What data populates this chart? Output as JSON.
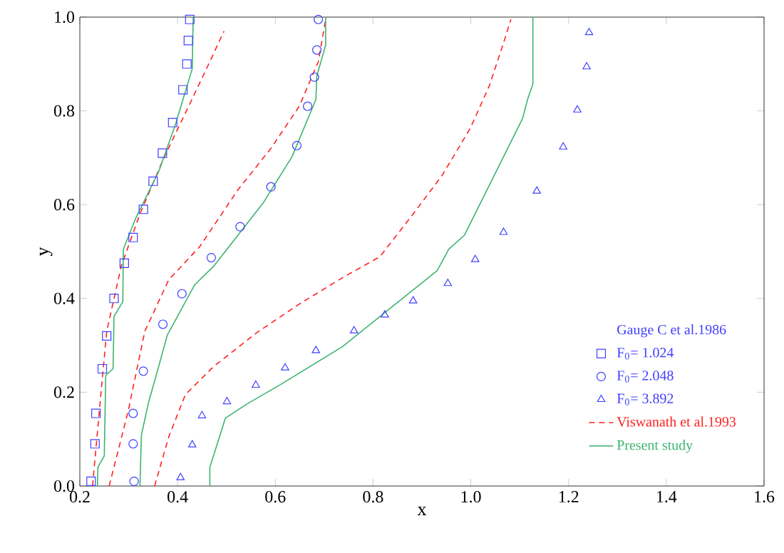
{
  "chart_data": {
    "type": "line",
    "xlabel": "x",
    "ylabel": "y",
    "legend_title": "Gauge C et al.1986",
    "legend": "bottom right",
    "grid": false,
    "xlim": [
      0.2,
      1.6
    ],
    "ylim": [
      0,
      1
    ],
    "xticks": [
      0.2,
      0.4,
      0.6,
      0.8,
      {
        "value": 1,
        "label": "1.0"
      },
      1.2,
      1.4,
      1.6
    ],
    "yticks": [
      {
        "value": 0,
        "label": "0.0"
      },
      0.2,
      0.4,
      0.6,
      0.8,
      {
        "value": 1,
        "label": "1.0"
      }
    ],
    "series": [
      {
        "name": "F$_{0}$= 1.024",
        "type": "scatter",
        "marker": "square",
        "color": "#4040ff",
        "x": [
          0.223,
          0.231,
          0.233,
          0.246,
          0.255,
          0.27,
          0.291,
          0.309,
          0.33,
          0.35,
          0.369,
          0.39,
          0.411,
          0.419,
          0.422,
          0.425
        ],
        "values": [
          0.01,
          0.09,
          0.155,
          0.25,
          0.32,
          0.4,
          0.475,
          0.53,
          0.59,
          0.65,
          0.71,
          0.775,
          0.845,
          0.9,
          0.95,
          0.995
        ]
      },
      {
        "name": "F$_{0}$= 2.048",
        "type": "scatter",
        "marker": "circle",
        "color": "#4040ff",
        "x": [
          0.311,
          0.309,
          0.309,
          0.33,
          0.37,
          0.409,
          0.469,
          0.528,
          0.591,
          0.644,
          0.666,
          0.68,
          0.685,
          0.688
        ],
        "values": [
          0.01,
          0.09,
          0.155,
          0.245,
          0.345,
          0.41,
          0.487,
          0.553,
          0.638,
          0.726,
          0.81,
          0.872,
          0.93,
          0.995
        ]
      },
      {
        "name": "F$_{0}$= 3.892",
        "type": "scatter",
        "marker": "triangle",
        "color": "#4040ff",
        "x": [
          0.406,
          0.43,
          0.45,
          0.501,
          0.56,
          0.62,
          0.683,
          0.761,
          0.824,
          0.882,
          0.953,
          1.009,
          1.067,
          1.135,
          1.189,
          1.218,
          1.237,
          1.242
        ],
        "values": [
          0.018,
          0.088,
          0.15,
          0.18,
          0.215,
          0.252,
          0.289,
          0.331,
          0.365,
          0.395,
          0.432,
          0.483,
          0.541,
          0.629,
          0.723,
          0.802,
          0.894,
          0.967
        ]
      },
      {
        "name": "Viswanath et al.1993",
        "line_style": "dashed",
        "color": "#ff2020",
        "x": [
          0.226,
          0.243,
          0.255,
          0.285,
          0.323,
          0.372,
          0.425,
          0.466,
          0.495
        ],
        "values": [
          0,
          0.195,
          0.33,
          0.47,
          0.58,
          0.7,
          0.815,
          0.905,
          0.97
        ]
      },
      {
        "name": "Present study",
        "line_style": "solid",
        "color": "#3cb371",
        "x": [
          0.236,
          0.237,
          0.25,
          0.253,
          0.268,
          0.27,
          0.288,
          0.289,
          0.314,
          0.362,
          0.396,
          0.43,
          0.432
        ],
        "values": [
          0,
          0.04,
          0.064,
          0.236,
          0.25,
          0.362,
          0.393,
          0.505,
          0.57,
          0.672,
          0.772,
          0.89,
          1.0
        ]
      },
      {
        "line_style": "dashed",
        "color": "#ff2020",
        "x": [
          0.26,
          0.299,
          0.333,
          0.382,
          0.445,
          0.523,
          0.591,
          0.649,
          0.688,
          0.703
        ],
        "values": [
          0,
          0.16,
          0.33,
          0.44,
          0.51,
          0.631,
          0.72,
          0.81,
          0.905,
          0.995
        ]
      },
      {
        "line_style": "dashed",
        "color": "#ff2020",
        "x": [
          0.353,
          0.382,
          0.416,
          0.474,
          0.562,
          0.649,
          0.737,
          0.814,
          0.882,
          0.941,
          0.999,
          1.038,
          1.067,
          1.082
        ],
        "values": [
          0,
          0.105,
          0.195,
          0.255,
          0.327,
          0.388,
          0.444,
          0.489,
          0.58,
          0.662,
          0.763,
          0.854,
          0.945,
          0.995
        ]
      },
      {
        "line_style": "solid",
        "color": "#3cb371",
        "x": [
          0.323,
          0.326,
          0.341,
          0.355,
          0.379,
          0.435,
          0.474,
          0.576,
          0.634,
          0.683,
          0.685,
          0.703,
          0.703
        ],
        "values": [
          0,
          0.109,
          0.18,
          0.231,
          0.322,
          0.429,
          0.469,
          0.605,
          0.702,
          0.824,
          0.875,
          0.94,
          1.0
        ]
      },
      {
        "line_style": "solid",
        "color": "#3cb371",
        "x": [
          0.466,
          0.466,
          0.498,
          0.542,
          0.61,
          0.737,
          0.931,
          0.955,
          0.987,
          1.106,
          1.116,
          1.127,
          1.127
        ],
        "values": [
          0,
          0.04,
          0.145,
          0.175,
          0.216,
          0.297,
          0.459,
          0.505,
          0.535,
          0.784,
          0.824,
          0.857,
          1.0
        ]
      }
    ]
  }
}
